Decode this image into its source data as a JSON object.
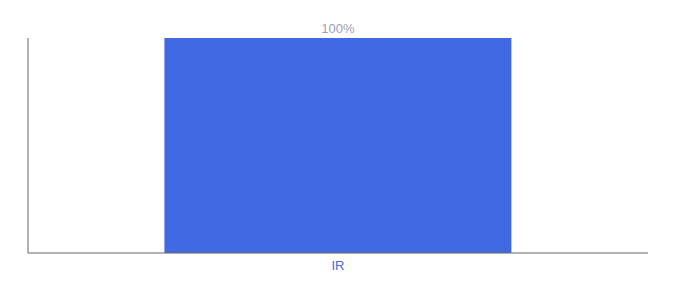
{
  "chart_data": {
    "type": "bar",
    "categories": [
      "IR"
    ],
    "values": [
      100
    ],
    "value_labels": [
      "100%"
    ],
    "data_labels": true,
    "color": "#4169E1",
    "ylim": [
      0,
      100
    ],
    "tick_labels": "x",
    "grid": false
  }
}
